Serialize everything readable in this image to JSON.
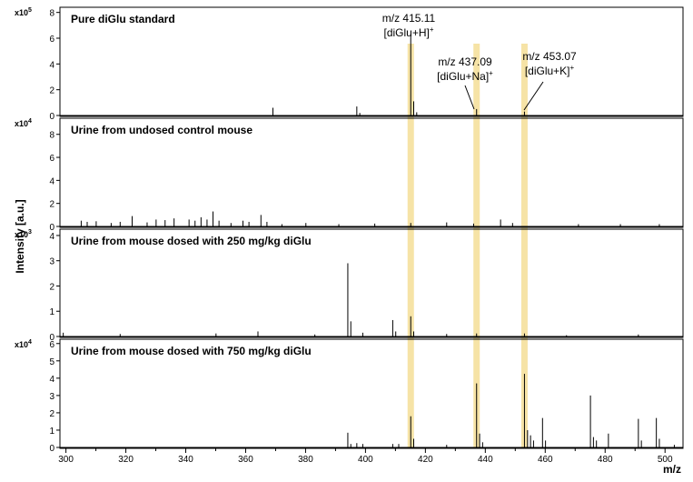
{
  "chart_data": {
    "type": "stacked-mass-spectra",
    "xlabel": "m/z",
    "ylabel": "Intensity [a.u.]",
    "xlim": [
      298,
      506
    ],
    "x_ticks": [
      "300",
      "320",
      "340",
      "360",
      "380",
      "400",
      "420",
      "440",
      "460",
      "480",
      "500"
    ],
    "highlight_color": "#f6e3a6",
    "highlight_mz": [
      415.11,
      437.09,
      453.07
    ],
    "annotations": [
      {
        "mz": "m/z 415.11",
        "ion_base": "[diGlu+H]",
        "sup": "+"
      },
      {
        "mz": "m/z 437.09",
        "ion_base": "[diGlu+Na]",
        "sup": "+"
      },
      {
        "mz": "m/z 453.07",
        "ion_base": "[diGlu+K]",
        "sup": "+"
      }
    ],
    "panels": [
      {
        "title": "Pure diGlu standard",
        "scale_base": "x10",
        "scale_exp": "5",
        "ylim": [
          0,
          8.4
        ],
        "y_ticks": [
          "0",
          "2",
          "4",
          "6",
          "8"
        ],
        "peaks": [
          [
            369.1,
            0.6
          ],
          [
            397.1,
            0.7
          ],
          [
            398.1,
            0.2
          ],
          [
            415.11,
            6.3
          ],
          [
            416.1,
            1.1
          ],
          [
            417.1,
            0.25
          ],
          [
            437.09,
            0.5
          ],
          [
            453.07,
            0.3
          ]
        ]
      },
      {
        "title": "Urine from undosed control mouse",
        "scale_base": "x10",
        "scale_exp": "4",
        "ylim": [
          0,
          9.4
        ],
        "y_ticks": [
          "0",
          "2",
          "4",
          "6",
          "8"
        ],
        "peaks": [
          [
            305.1,
            0.5
          ],
          [
            307.1,
            0.4
          ],
          [
            310.1,
            0.45
          ],
          [
            315.1,
            0.3
          ],
          [
            318.1,
            0.4
          ],
          [
            322.1,
            0.9
          ],
          [
            327.1,
            0.35
          ],
          [
            330.1,
            0.6
          ],
          [
            333.1,
            0.55
          ],
          [
            336.1,
            0.7
          ],
          [
            341.1,
            0.6
          ],
          [
            343.1,
            0.5
          ],
          [
            345.1,
            0.8
          ],
          [
            347.1,
            0.6
          ],
          [
            349.1,
            1.3
          ],
          [
            351.1,
            0.5
          ],
          [
            355.1,
            0.3
          ],
          [
            359.1,
            0.5
          ],
          [
            361.1,
            0.4
          ],
          [
            365.1,
            1.0
          ],
          [
            367.1,
            0.4
          ],
          [
            372.1,
            0.2
          ],
          [
            380.1,
            0.3
          ],
          [
            391.1,
            0.2
          ],
          [
            403.1,
            0.25
          ],
          [
            415.11,
            0.3
          ],
          [
            427.1,
            0.35
          ],
          [
            436.1,
            0.25
          ],
          [
            445.1,
            0.6
          ],
          [
            449.1,
            0.3
          ],
          [
            471.1,
            0.2
          ],
          [
            485.1,
            0.2
          ],
          [
            498.1,
            0.2
          ]
        ]
      },
      {
        "title": "Urine from mouse dosed with 250 mg/kg diGlu",
        "scale_base": "x10",
        "scale_exp": "3",
        "ylim": [
          0,
          4.25
        ],
        "y_ticks": [
          "0",
          "1",
          "2",
          "3",
          "4"
        ],
        "peaks": [
          [
            299.1,
            0.15
          ],
          [
            318.1,
            0.1
          ],
          [
            350.1,
            0.12
          ],
          [
            364.1,
            0.2
          ],
          [
            383.1,
            0.08
          ],
          [
            394.1,
            2.9
          ],
          [
            395.1,
            0.6
          ],
          [
            399.1,
            0.15
          ],
          [
            409.1,
            0.65
          ],
          [
            410.1,
            0.2
          ],
          [
            415.11,
            0.8
          ],
          [
            416.1,
            0.2
          ],
          [
            427.1,
            0.1
          ],
          [
            437.09,
            0.12
          ],
          [
            453.07,
            0.12
          ],
          [
            467.1,
            0.05
          ],
          [
            491.1,
            0.08
          ]
        ]
      },
      {
        "title": "Urine from mouse dosed with 750 mg/kg diGlu",
        "scale_base": "x10",
        "scale_exp": "4",
        "ylim": [
          0,
          6.25
        ],
        "y_ticks": [
          "0",
          "1",
          "2",
          "3",
          "4",
          "5",
          "6"
        ],
        "peaks": [
          [
            394.1,
            0.85
          ],
          [
            395.1,
            0.2
          ],
          [
            397.1,
            0.25
          ],
          [
            399.1,
            0.2
          ],
          [
            409.1,
            0.2
          ],
          [
            411.1,
            0.2
          ],
          [
            415.11,
            1.8
          ],
          [
            416.1,
            0.5
          ],
          [
            427.1,
            0.15
          ],
          [
            437.09,
            3.7
          ],
          [
            438.1,
            0.8
          ],
          [
            439.1,
            0.3
          ],
          [
            453.07,
            4.25
          ],
          [
            454.1,
            1.0
          ],
          [
            455.1,
            0.7
          ],
          [
            456.1,
            0.4
          ],
          [
            459.1,
            1.7
          ],
          [
            460.1,
            0.4
          ],
          [
            475.1,
            3.0
          ],
          [
            476.1,
            0.6
          ],
          [
            477.1,
            0.4
          ],
          [
            481.1,
            0.8
          ],
          [
            491.1,
            1.65
          ],
          [
            492.1,
            0.4
          ],
          [
            497.1,
            1.7
          ],
          [
            498.1,
            0.5
          ],
          [
            503.1,
            0.15
          ]
        ]
      }
    ]
  }
}
